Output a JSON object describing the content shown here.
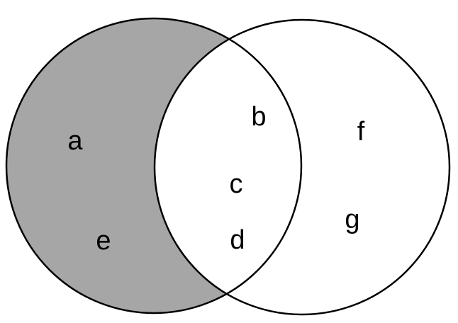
{
  "colors": {
    "shaded_fill": "#a6a6a6",
    "background": "#ffffff",
    "stroke": "#000000",
    "text": "#000000"
  },
  "shaded_region": "left-only",
  "labels": {
    "a": "a",
    "b": "b",
    "c": "c",
    "d": "d",
    "e": "e",
    "f": "f",
    "g": "g"
  }
}
